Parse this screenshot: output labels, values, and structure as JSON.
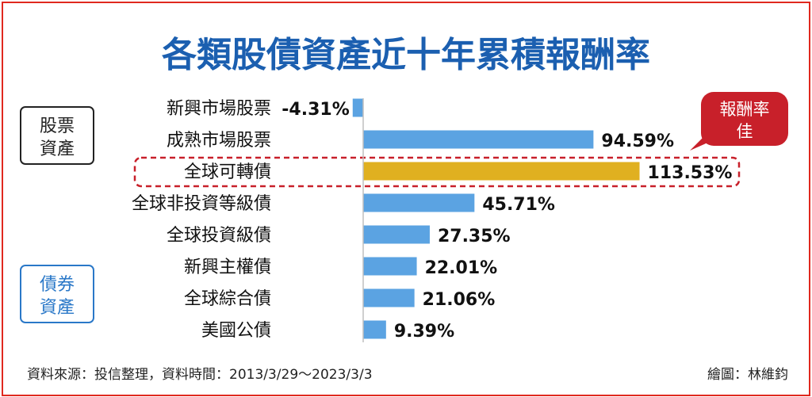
{
  "title": "各類股債資產近十年累積報酬率",
  "groups": [
    {
      "label_line1": "股票",
      "label_line2": "資產",
      "color": "#222222"
    },
    {
      "label_line1": "債券",
      "label_line2": "資產",
      "color": "#2a78c8"
    }
  ],
  "callout": {
    "line1": "報酬率",
    "line2": "佳",
    "color": "#c8202a"
  },
  "footer": {
    "source": "資料來源：投信整理，資料時間：2013/3/29～2023/3/3",
    "credit": "繪圖：林維鈞"
  },
  "colors": {
    "bar": "#5ba3e2",
    "highlight_bar": "#e0b020",
    "title": "#1b5fb0",
    "frame": "#e0291f",
    "callout": "#c8202a"
  },
  "chart_data": {
    "type": "bar",
    "orientation": "horizontal",
    "title": "各類股債資產近十年累積報酬率",
    "categories": [
      "新興市場股票",
      "成熟市場股票",
      "全球可轉債",
      "全球非投資等級債",
      "全球投資級債",
      "新興主權債",
      "全球綜合債",
      "美國公債"
    ],
    "values": [
      -4.31,
      94.59,
      113.53,
      45.71,
      27.35,
      22.01,
      21.06,
      9.39
    ],
    "data_labels": [
      "-4.31%",
      "94.59%",
      "113.53%",
      "45.71%",
      "27.35%",
      "22.01%",
      "21.06%",
      "9.39%"
    ],
    "highlight_index": 2,
    "unit": "%",
    "grid": false,
    "legend": "none"
  }
}
